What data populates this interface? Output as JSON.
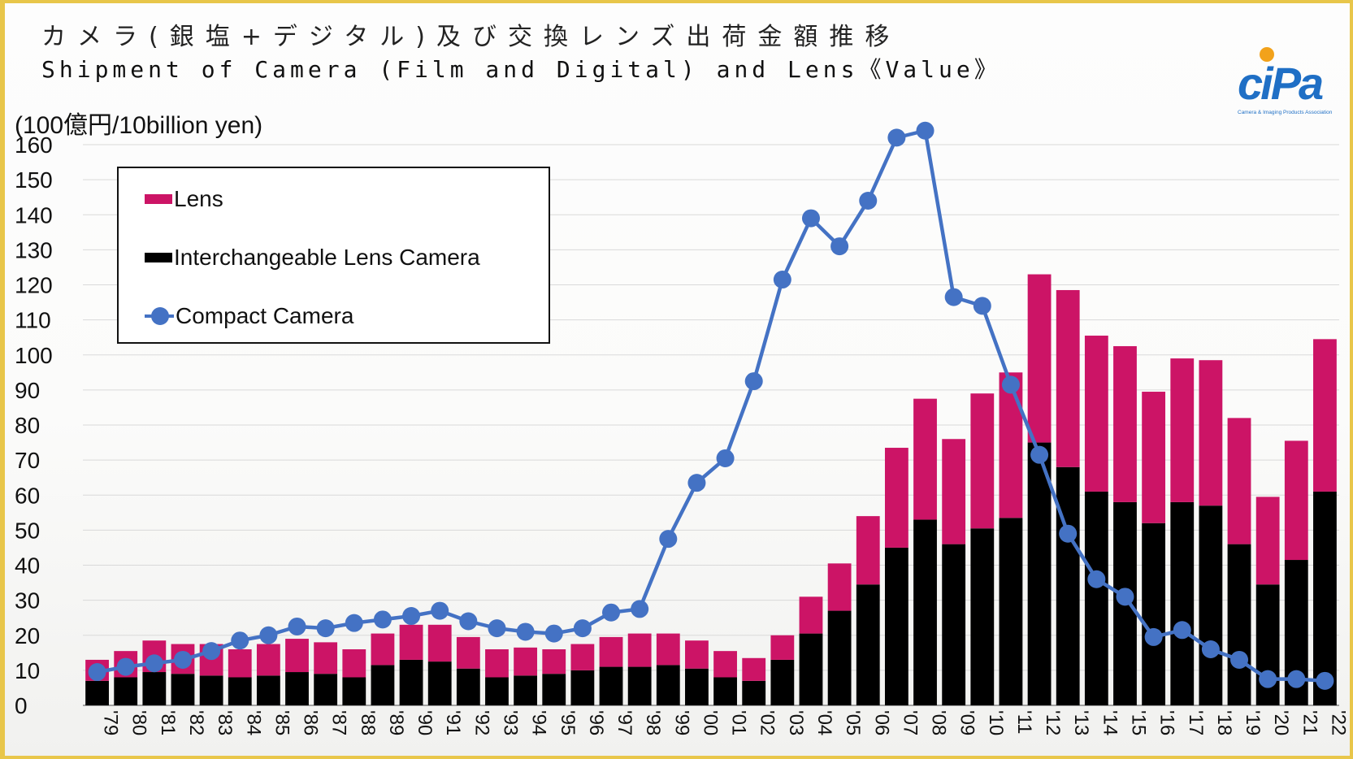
{
  "title_jp": "カメラ(銀塩+デジタル)及び交換レンズ出荷金額推移",
  "title_en": "Shipment of Camera (Film and Digital) and Lens《Value》",
  "logo_text": "CIPA",
  "logo_subtext": "Camera & Imaging Products Association",
  "chart_data": {
    "type": "bar",
    "stacked": true,
    "ylabel": "(100億円/10billion yen)",
    "ylim": [
      0,
      160
    ],
    "yticks": [
      0,
      10,
      20,
      30,
      40,
      50,
      60,
      70,
      80,
      90,
      100,
      110,
      120,
      130,
      140,
      150,
      160
    ],
    "grid": true,
    "legend_position": "top-left",
    "categories": [
      "'79",
      "'80",
      "'81",
      "'82",
      "'83",
      "'84",
      "'85",
      "'86",
      "'87",
      "'88",
      "'89",
      "'90",
      "'91",
      "'92",
      "'93",
      "'94",
      "'95",
      "'96",
      "'97",
      "'98",
      "'99",
      "'00",
      "'01",
      "'02",
      "'03",
      "'04",
      "'05",
      "'06",
      "'07",
      "'08",
      "'09",
      "'10",
      "'11",
      "'12",
      "'13",
      "'14",
      "'15",
      "'16",
      "'17",
      "'18",
      "'19",
      "'20",
      "'21",
      "'22"
    ],
    "series": [
      {
        "name": "Interchangeable Lens Camera",
        "type": "bar",
        "color": "#000000",
        "values": [
          7,
          8,
          9.5,
          9,
          8.5,
          8,
          8.5,
          9.5,
          9,
          8,
          11.5,
          13,
          12.5,
          10.5,
          8,
          8.5,
          9,
          10,
          11,
          11,
          11.5,
          10.5,
          8,
          7,
          13,
          20.5,
          27,
          34.5,
          45,
          53,
          46,
          50.5,
          53.5,
          75,
          68,
          61,
          58,
          52,
          58,
          57,
          46,
          34.5,
          41.5,
          61
        ]
      },
      {
        "name": "Lens",
        "type": "bar",
        "color": "#cc1466",
        "values": [
          6,
          7.5,
          9,
          8.5,
          9,
          8,
          9,
          9.5,
          9,
          8,
          9,
          10,
          10.5,
          9,
          8,
          8,
          7,
          7.5,
          8.5,
          9.5,
          9,
          8,
          7.5,
          6.5,
          7,
          10.5,
          13.5,
          19.5,
          28.5,
          34.5,
          30,
          38.5,
          41.5,
          48,
          50.5,
          44.5,
          44.5,
          37.5,
          41,
          41.5,
          36,
          25,
          34,
          43.5
        ]
      },
      {
        "name": "Compact Camera",
        "type": "line",
        "color": "#4472c4",
        "values": [
          9.5,
          11,
          12,
          13,
          15.5,
          18.5,
          20,
          22.5,
          22,
          23.5,
          24.5,
          25.5,
          27,
          24,
          22,
          21,
          20.5,
          22,
          26.5,
          27.5,
          47.5,
          63.5,
          70.5,
          92.5,
          121.5,
          139,
          131,
          144,
          162,
          164,
          116.5,
          114,
          91.5,
          71.5,
          49,
          36,
          31,
          19.5,
          21.5,
          16,
          13,
          7.5,
          7.5,
          7
        ]
      }
    ]
  }
}
